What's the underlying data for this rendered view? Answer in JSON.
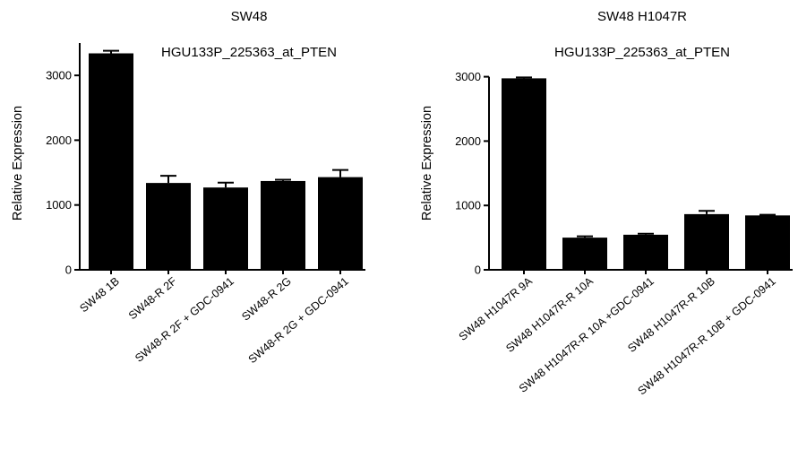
{
  "chart_data": [
    {
      "type": "bar",
      "title": "SW48",
      "subtitle": "HGU133P_225363_at_PTEN",
      "ylabel": "Relative Expression",
      "xlabel": "",
      "ylim": [
        0,
        3500
      ],
      "yticks": [
        0,
        1000,
        2000,
        3000
      ],
      "ytick_labels": [
        "0",
        "1000",
        "2000",
        "3000"
      ],
      "categories": [
        "SW48 1B",
        "SW48-R 2F",
        "SW48-R 2F + GDC-0941",
        "SW48-R 2G",
        "SW48-R 2G + GDC-0941"
      ],
      "values": [
        3340,
        1340,
        1270,
        1370,
        1430
      ],
      "errors": [
        40,
        110,
        75,
        20,
        110
      ],
      "bar_color": "#000000",
      "grid": false,
      "legend": "none"
    },
    {
      "type": "bar",
      "title": "SW48 H1047R",
      "subtitle": "HGU133P_225363_at_PTEN",
      "ylabel": "Relative Expression",
      "xlabel": "",
      "ylim": [
        0,
        3000
      ],
      "yticks": [
        0,
        1000,
        2000,
        3000
      ],
      "ytick_labels": [
        "0",
        "1000",
        "2000",
        "3000"
      ],
      "categories": [
        "SW48 H1047R 9A",
        "SW48 H1047R-R 10A",
        "SW48 H1047R-R 10A +GDC-0941",
        "SW48 H1047R-R 10B",
        "SW48 H1047R-R 10B + GDC-0941"
      ],
      "values": [
        2975,
        500,
        545,
        865,
        845
      ],
      "errors": [
        15,
        20,
        15,
        50,
        10
      ],
      "bar_color": "#000000",
      "grid": false,
      "legend": "none"
    }
  ]
}
